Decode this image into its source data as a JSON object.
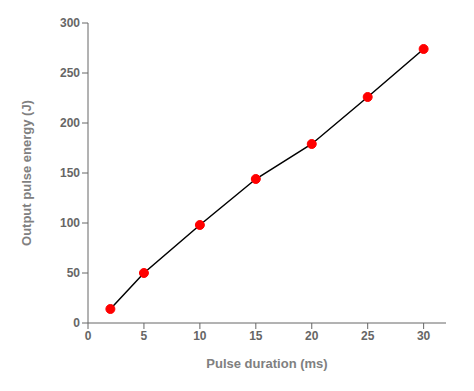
{
  "chart_data": {
    "type": "line",
    "x": [
      2,
      5,
      10,
      15,
      20,
      25,
      30
    ],
    "values": [
      14,
      50,
      98,
      144,
      179,
      226,
      274
    ],
    "color": "#000000",
    "colors": [
      "#ff0000",
      "#ff0000",
      "#ff0000",
      "#ff0000",
      "#ff0000",
      "#ff0000",
      "#ff0000"
    ],
    "marker": "circle",
    "xlabel": "Pulse duration (ms)",
    "ylabel": "Output pulse energy (J)",
    "xlim": [
      0,
      32
    ],
    "ylim": [
      0,
      300
    ],
    "xticks": [
      0,
      5,
      10,
      15,
      20,
      25,
      30
    ],
    "yticks": [
      0,
      50,
      100,
      150,
      200,
      250,
      300
    ],
    "grid": false
  }
}
